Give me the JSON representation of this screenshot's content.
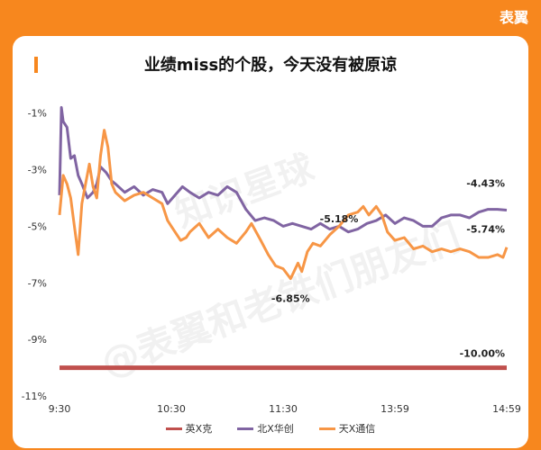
{
  "brand": "表翼",
  "title": "业绩miss的个股，今天没有被原谅",
  "watermarks": [
    "知识星球",
    "@表翼和老铁们朋友们"
  ],
  "colors": {
    "background": "#f7871e",
    "series": [
      "#c0504d",
      "#8064a2",
      "#f79646"
    ]
  },
  "chart_data": {
    "type": "line",
    "title": "业绩miss的个股，今天没有被原谅",
    "xlabel": "",
    "ylabel": "",
    "x_ticks": [
      "9:30",
      "10:30",
      "11:30",
      "13:59",
      "14:59"
    ],
    "y_ticks": [
      "-1%",
      "-3%",
      "-5%",
      "-7%",
      "-9%",
      "-11%"
    ],
    "ylim": [
      -11,
      -0.5
    ],
    "grid": false,
    "legend_position": "bottom",
    "series": [
      {
        "name": "英X克",
        "points": [
          [
            0,
            -10.0
          ],
          [
            240,
            -10.0
          ]
        ],
        "end_label": "-10.00%"
      },
      {
        "name": "北X华创",
        "points": [
          [
            0,
            -3.9
          ],
          [
            1,
            -0.8
          ],
          [
            2,
            -1.3
          ],
          [
            4,
            -1.5
          ],
          [
            6,
            -2.6
          ],
          [
            8,
            -2.5
          ],
          [
            10,
            -3.2
          ],
          [
            12,
            -3.5
          ],
          [
            15,
            -4.0
          ],
          [
            18,
            -3.8
          ],
          [
            20,
            -3.5
          ],
          [
            22,
            -2.9
          ],
          [
            25,
            -3.1
          ],
          [
            28,
            -3.4
          ],
          [
            30,
            -3.5
          ],
          [
            35,
            -3.8
          ],
          [
            40,
            -3.6
          ],
          [
            45,
            -3.9
          ],
          [
            50,
            -3.7
          ],
          [
            55,
            -3.8
          ],
          [
            58,
            -4.2
          ],
          [
            62,
            -3.9
          ],
          [
            66,
            -3.6
          ],
          [
            70,
            -3.8
          ],
          [
            75,
            -4.0
          ],
          [
            80,
            -3.8
          ],
          [
            85,
            -3.9
          ],
          [
            90,
            -3.6
          ],
          [
            95,
            -3.8
          ],
          [
            100,
            -4.4
          ],
          [
            105,
            -4.8
          ],
          [
            110,
            -4.7
          ],
          [
            115,
            -4.8
          ],
          [
            120,
            -5.0
          ],
          [
            125,
            -4.9
          ],
          [
            130,
            -5.0
          ],
          [
            135,
            -5.1
          ],
          [
            140,
            -4.9
          ],
          [
            145,
            -5.1
          ],
          [
            150,
            -5.0
          ],
          [
            155,
            -5.2
          ],
          [
            160,
            -5.1
          ],
          [
            165,
            -4.9
          ],
          [
            170,
            -4.8
          ],
          [
            175,
            -4.6
          ],
          [
            180,
            -4.9
          ],
          [
            185,
            -4.7
          ],
          [
            190,
            -4.8
          ],
          [
            195,
            -5.0
          ],
          [
            200,
            -5.0
          ],
          [
            205,
            -4.7
          ],
          [
            210,
            -4.6
          ],
          [
            215,
            -4.6
          ],
          [
            220,
            -4.7
          ],
          [
            225,
            -4.5
          ],
          [
            230,
            -4.4
          ],
          [
            235,
            -4.4
          ],
          [
            240,
            -4.43
          ]
        ],
        "annotations": [
          {
            "x": 150,
            "y": -5.18,
            "label": "-5.18%"
          }
        ],
        "end_label": "-4.43%"
      },
      {
        "name": "天X通信",
        "points": [
          [
            0,
            -4.6
          ],
          [
            2,
            -3.2
          ],
          [
            4,
            -3.5
          ],
          [
            6,
            -4.0
          ],
          [
            8,
            -5.0
          ],
          [
            10,
            -6.0
          ],
          [
            12,
            -4.2
          ],
          [
            14,
            -3.5
          ],
          [
            16,
            -2.8
          ],
          [
            18,
            -3.6
          ],
          [
            20,
            -4.0
          ],
          [
            22,
            -2.5
          ],
          [
            24,
            -1.6
          ],
          [
            26,
            -2.2
          ],
          [
            28,
            -3.5
          ],
          [
            30,
            -3.8
          ],
          [
            35,
            -4.1
          ],
          [
            40,
            -3.9
          ],
          [
            45,
            -3.8
          ],
          [
            50,
            -4.0
          ],
          [
            55,
            -4.2
          ],
          [
            58,
            -4.8
          ],
          [
            60,
            -5.0
          ],
          [
            62,
            -5.2
          ],
          [
            65,
            -5.5
          ],
          [
            68,
            -5.4
          ],
          [
            70,
            -5.2
          ],
          [
            75,
            -4.9
          ],
          [
            80,
            -5.4
          ],
          [
            85,
            -5.1
          ],
          [
            90,
            -5.4
          ],
          [
            95,
            -5.6
          ],
          [
            100,
            -5.2
          ],
          [
            103,
            -4.9
          ],
          [
            108,
            -5.5
          ],
          [
            112,
            -6.0
          ],
          [
            116,
            -6.4
          ],
          [
            120,
            -6.5
          ],
          [
            124,
            -6.85
          ],
          [
            128,
            -6.3
          ],
          [
            130,
            -6.6
          ],
          [
            133,
            -5.9
          ],
          [
            136,
            -5.6
          ],
          [
            140,
            -5.7
          ],
          [
            145,
            -5.3
          ],
          [
            150,
            -5.0
          ],
          [
            155,
            -4.6
          ],
          [
            160,
            -4.5
          ],
          [
            163,
            -4.3
          ],
          [
            166,
            -4.6
          ],
          [
            170,
            -4.3
          ],
          [
            173,
            -4.6
          ],
          [
            176,
            -5.2
          ],
          [
            180,
            -5.5
          ],
          [
            185,
            -5.4
          ],
          [
            190,
            -5.8
          ],
          [
            195,
            -5.7
          ],
          [
            200,
            -5.9
          ],
          [
            205,
            -5.8
          ],
          [
            210,
            -5.9
          ],
          [
            215,
            -5.8
          ],
          [
            220,
            -5.9
          ],
          [
            225,
            -6.1
          ],
          [
            230,
            -6.1
          ],
          [
            235,
            -6.0
          ],
          [
            238,
            -6.1
          ],
          [
            240,
            -5.74
          ]
        ],
        "annotations": [
          {
            "x": 124,
            "y": -6.85,
            "label": "-6.85%"
          }
        ],
        "end_label": "-5.74%"
      }
    ]
  }
}
